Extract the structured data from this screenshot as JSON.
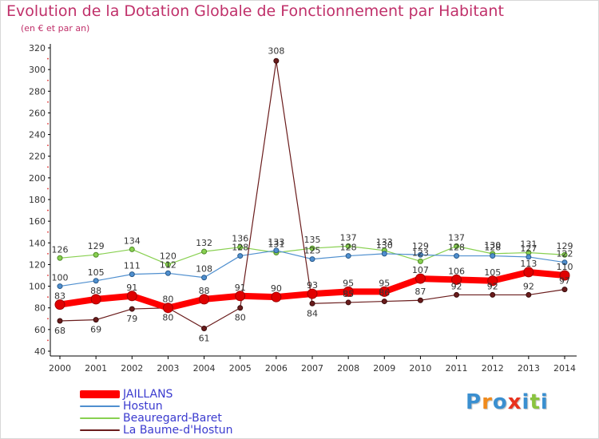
{
  "title": "Evolution de la Dotation Globale de Fonctionnement par Habitant",
  "subtitle": "(en € et par an)",
  "logo_text": "Proxiti",
  "chart_data": {
    "type": "line",
    "title": "Evolution de la Dotation Globale de Fonctionnement par Habitant",
    "subtitle": "(en € et par an)",
    "xlabel": "",
    "ylabel": "",
    "x": [
      "2000",
      "2001",
      "2002",
      "2003",
      "2004",
      "2005",
      "2006",
      "2007",
      "2008",
      "2009",
      "2010",
      "2011",
      "2012",
      "2013",
      "2014"
    ],
    "yticks": [
      "40",
      "60",
      "80",
      "100",
      "120",
      "140",
      "160",
      "180",
      "200",
      "220",
      "240",
      "260",
      "280",
      "300",
      "320"
    ],
    "ylim": [
      40,
      320
    ],
    "grid": "none",
    "legend_position": "bottom-left",
    "series": [
      {
        "name": "JAILLANS",
        "color": "#ff0000",
        "values": [
          83,
          88,
          91,
          80,
          88,
          91,
          90,
          93,
          95,
          95,
          107,
          106,
          105,
          113,
          110
        ],
        "labels": [
          "83",
          "88",
          "91",
          "80",
          "88",
          "91",
          "90",
          "93",
          "95",
          "95",
          "107",
          "106",
          "105",
          "113",
          "110"
        ]
      },
      {
        "name": "Hostun",
        "color": "#4f8fcf",
        "values": [
          100,
          105,
          111,
          112,
          108,
          128,
          133,
          125,
          128,
          130,
          129,
          128,
          128,
          127,
          122
        ],
        "labels": [
          "100",
          "105",
          "111",
          "112",
          "108",
          "128",
          "133",
          "125",
          "128",
          "130",
          "129",
          "128",
          "128",
          "127",
          "122"
        ]
      },
      {
        "name": "Beauregard-Baret",
        "color": "#88d050",
        "values": [
          126,
          129,
          134,
          120,
          132,
          136,
          131,
          135,
          137,
          133,
          123,
          137,
          130,
          131,
          129
        ],
        "labels": [
          "126",
          "129",
          "134",
          "120",
          "132",
          "136",
          "131",
          "135",
          "137",
          "133",
          "123",
          "137",
          "130",
          "131",
          "129"
        ]
      },
      {
        "name": "La Baume-d'Hostun",
        "color": "#6a1c1c",
        "values": [
          68,
          69,
          79,
          80,
          61,
          80,
          308,
          84,
          85,
          86,
          87,
          92,
          92,
          92,
          97
        ],
        "labels": [
          "68",
          "69",
          "79",
          "80",
          "61",
          "80",
          "308",
          "84",
          "85",
          "86",
          "87",
          "92",
          "92",
          "92",
          "97"
        ]
      }
    ]
  }
}
